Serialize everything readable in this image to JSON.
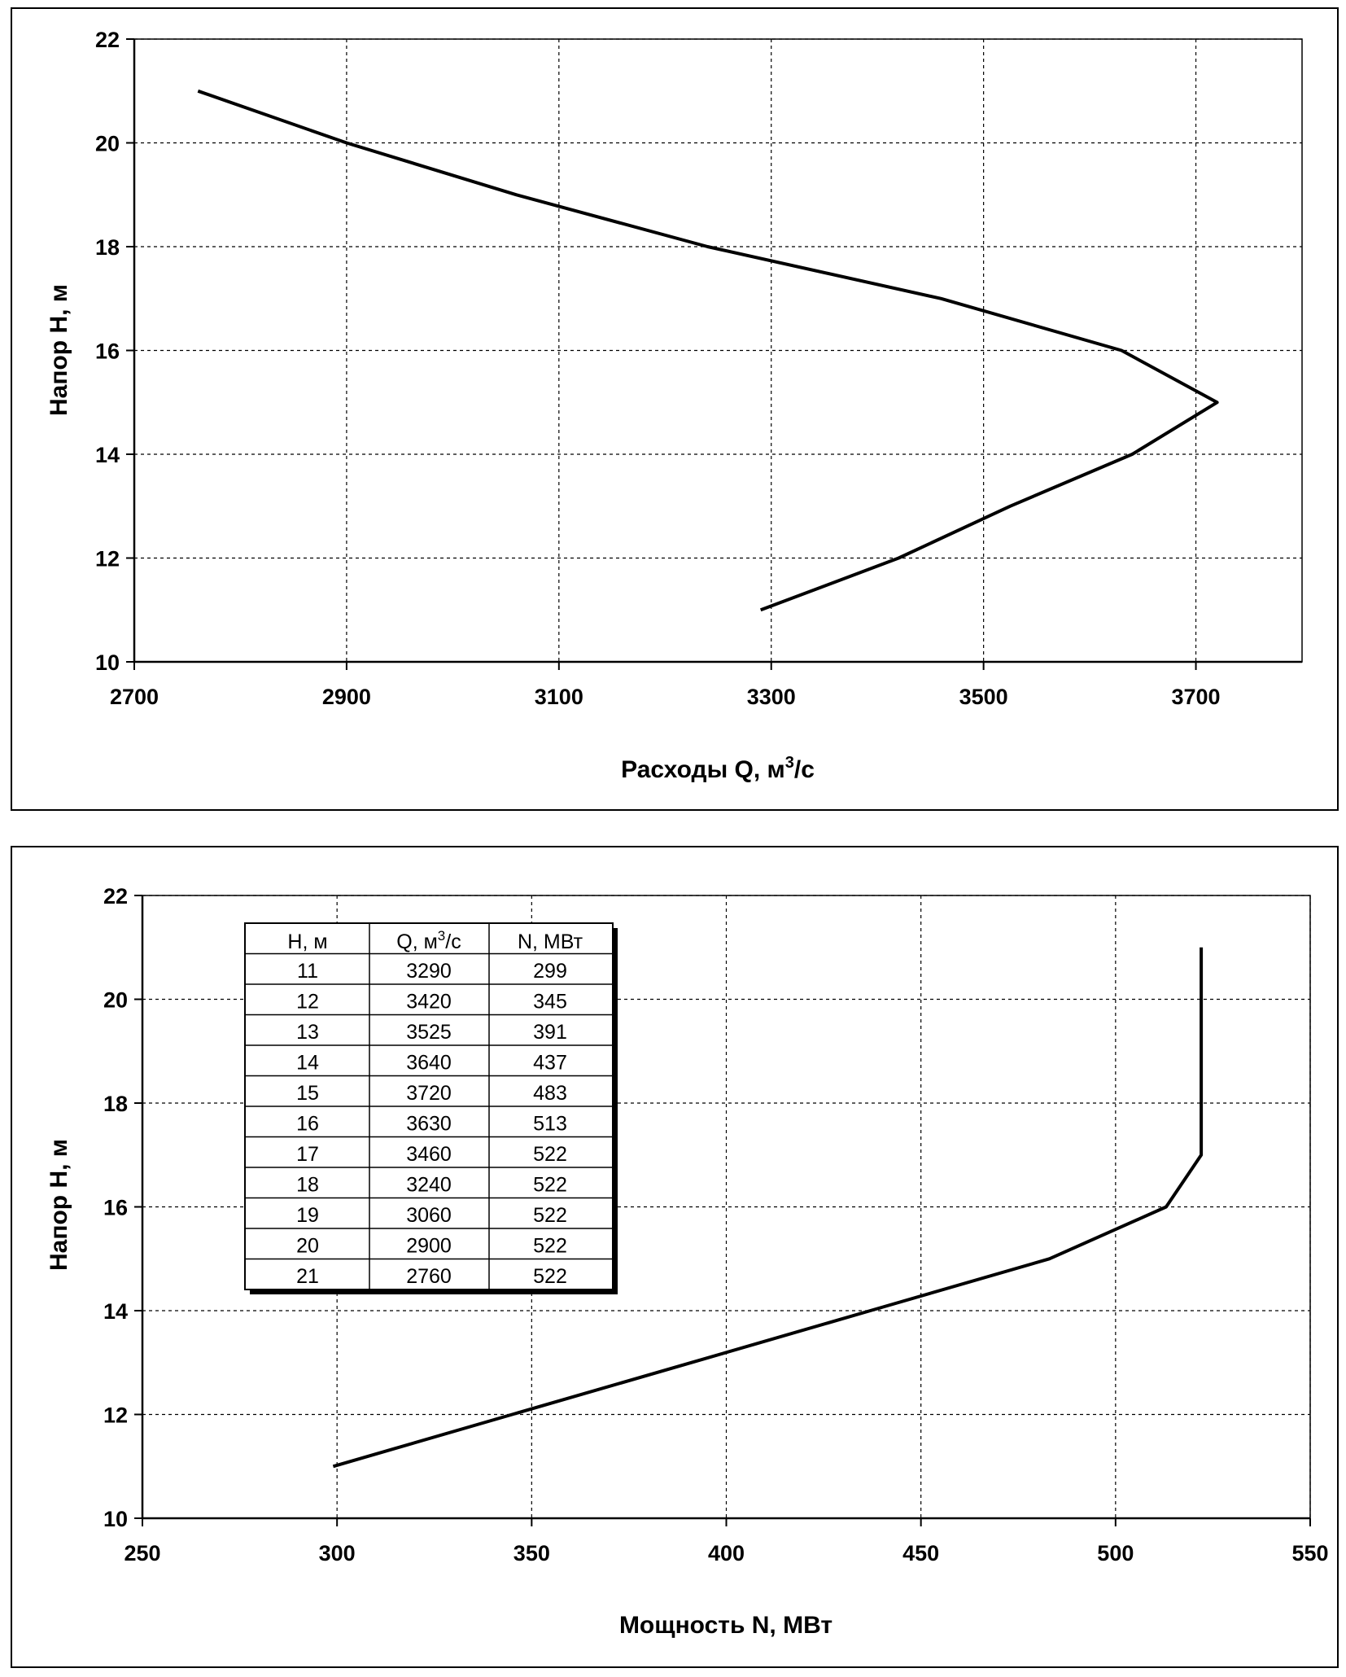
{
  "chart_data": [
    {
      "type": "line",
      "xlabel": "Расходы Q, м³/с",
      "xlabel_main": "Расходы Q, м",
      "xlabel_sup": "3",
      "xlabel_end": "/с",
      "ylabel": "Напор H, м",
      "xlim": [
        2700,
        3800
      ],
      "ylim": [
        10,
        22
      ],
      "xticks": [
        "2700",
        "2900",
        "3100",
        "3300",
        "3500",
        "3700"
      ],
      "yticks": [
        "10",
        "12",
        "14",
        "16",
        "18",
        "20",
        "22"
      ],
      "grid": true,
      "series": [
        {
          "x": [
            3290,
            3420,
            3525,
            3640,
            3720,
            3630,
            3460,
            3240,
            3060,
            2900,
            2760
          ],
          "y": [
            11,
            12,
            13,
            14,
            15,
            16,
            17,
            18,
            19,
            20,
            21
          ]
        }
      ]
    },
    {
      "type": "line",
      "xlabel": "Мощность N, МВт",
      "ylabel": "Напор H, м",
      "xlim": [
        250,
        550
      ],
      "ylim": [
        10,
        22
      ],
      "xticks": [
        "250",
        "300",
        "350",
        "400",
        "450",
        "500",
        "550"
      ],
      "yticks": [
        "10",
        "12",
        "14",
        "16",
        "18",
        "20",
        "22"
      ],
      "grid": true,
      "series": [
        {
          "x": [
            299,
            345,
            391,
            437,
            483,
            513,
            522,
            522,
            522,
            522,
            522
          ],
          "y": [
            11,
            12,
            13,
            14,
            15,
            16,
            17,
            18,
            19,
            20,
            21
          ]
        }
      ],
      "table": {
        "headers": [
          "H, м",
          "Q, м³/с",
          "N, МВт"
        ],
        "header_q_main": "Q, м",
        "header_q_sup": "3",
        "header_q_end": "/с",
        "rows": [
          [
            "11",
            "3290",
            "299"
          ],
          [
            "12",
            "3420",
            "345"
          ],
          [
            "13",
            "3525",
            "391"
          ],
          [
            "14",
            "3640",
            "437"
          ],
          [
            "15",
            "3720",
            "483"
          ],
          [
            "16",
            "3630",
            "513"
          ],
          [
            "17",
            "3460",
            "522"
          ],
          [
            "18",
            "3240",
            "522"
          ],
          [
            "19",
            "3060",
            "522"
          ],
          [
            "20",
            "2900",
            "522"
          ],
          [
            "21",
            "2760",
            "522"
          ]
        ]
      }
    }
  ]
}
